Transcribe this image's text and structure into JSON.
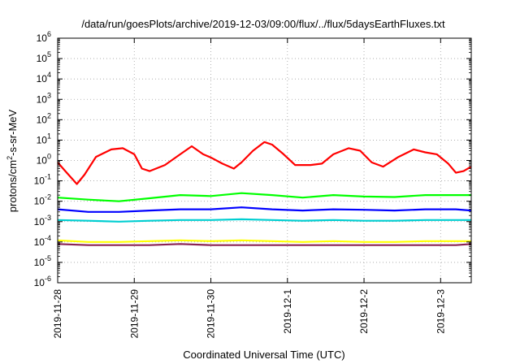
{
  "chart_data": {
    "type": "line",
    "title": "/data/run/goesPlots/archive/2019-12-03/09:00/flux/../flux/5daysEarthFluxes.txt",
    "xlabel": "Coordinated Universal Time (UTC)",
    "ylabel_pre": "protons/cm",
    "ylabel_sup": "2",
    "ylabel_post": "-s-sr-MeV",
    "yscale": "log",
    "ylim": [
      1e-06,
      1000000
    ],
    "y_ticks": [
      {
        "exp": "-6"
      },
      {
        "exp": "-5"
      },
      {
        "exp": "-4"
      },
      {
        "exp": "-3"
      },
      {
        "exp": "-2"
      },
      {
        "exp": "-1"
      },
      {
        "exp": "0"
      },
      {
        "exp": "1"
      },
      {
        "exp": "2"
      },
      {
        "exp": "3"
      },
      {
        "exp": "4"
      },
      {
        "exp": "5"
      },
      {
        "exp": "6"
      }
    ],
    "y_tick_base": "10",
    "x_ticks": [
      "2019-11-28",
      "2019-11-29",
      "2019-11-30",
      "2019-12-1",
      "2019-12-2",
      "2019-12-3"
    ],
    "xlim_days": [
      0,
      5.4
    ],
    "grid": true,
    "series": [
      {
        "color": "#ff0000",
        "points": [
          [
            0,
            0.8
          ],
          [
            0.1,
            0.3
          ],
          [
            0.25,
            0.07
          ],
          [
            0.35,
            0.2
          ],
          [
            0.5,
            1.5
          ],
          [
            0.7,
            3.5
          ],
          [
            0.85,
            4
          ],
          [
            1.0,
            2
          ],
          [
            1.1,
            0.4
          ],
          [
            1.2,
            0.3
          ],
          [
            1.4,
            0.6
          ],
          [
            1.6,
            2
          ],
          [
            1.75,
            5
          ],
          [
            1.9,
            2
          ],
          [
            2.0,
            1.4
          ],
          [
            2.15,
            0.7
          ],
          [
            2.3,
            0.4
          ],
          [
            2.4,
            0.8
          ],
          [
            2.55,
            3
          ],
          [
            2.7,
            8
          ],
          [
            2.8,
            6
          ],
          [
            2.95,
            2
          ],
          [
            3.1,
            0.6
          ],
          [
            3.3,
            0.6
          ],
          [
            3.45,
            0.7
          ],
          [
            3.6,
            2
          ],
          [
            3.8,
            4
          ],
          [
            3.95,
            3
          ],
          [
            4.1,
            0.8
          ],
          [
            4.25,
            0.5
          ],
          [
            4.45,
            1.5
          ],
          [
            4.65,
            3.5
          ],
          [
            4.8,
            2.5
          ],
          [
            4.95,
            2
          ],
          [
            5.1,
            0.7
          ],
          [
            5.2,
            0.25
          ],
          [
            5.3,
            0.3
          ],
          [
            5.4,
            0.5
          ]
        ]
      },
      {
        "color": "#00ff00",
        "points": [
          [
            0,
            0.015
          ],
          [
            0.4,
            0.012
          ],
          [
            0.8,
            0.01
          ],
          [
            1.2,
            0.014
          ],
          [
            1.6,
            0.02
          ],
          [
            2.0,
            0.018
          ],
          [
            2.4,
            0.025
          ],
          [
            2.8,
            0.02
          ],
          [
            3.2,
            0.015
          ],
          [
            3.6,
            0.02
          ],
          [
            4.0,
            0.017
          ],
          [
            4.4,
            0.016
          ],
          [
            4.8,
            0.02
          ],
          [
            5.2,
            0.02
          ],
          [
            5.4,
            0.02
          ]
        ]
      },
      {
        "color": "#0000ff",
        "points": [
          [
            0,
            0.004
          ],
          [
            0.4,
            0.003
          ],
          [
            0.8,
            0.003
          ],
          [
            1.2,
            0.0035
          ],
          [
            1.6,
            0.004
          ],
          [
            2.0,
            0.004
          ],
          [
            2.4,
            0.005
          ],
          [
            2.8,
            0.004
          ],
          [
            3.2,
            0.0035
          ],
          [
            3.6,
            0.004
          ],
          [
            4.0,
            0.0038
          ],
          [
            4.4,
            0.0035
          ],
          [
            4.8,
            0.004
          ],
          [
            5.2,
            0.004
          ],
          [
            5.4,
            0.0035
          ]
        ]
      },
      {
        "color": "#00ced1",
        "points": [
          [
            0,
            0.0012
          ],
          [
            0.4,
            0.0011
          ],
          [
            0.8,
            0.001
          ],
          [
            1.2,
            0.0011
          ],
          [
            1.6,
            0.0012
          ],
          [
            2.0,
            0.0012
          ],
          [
            2.4,
            0.0013
          ],
          [
            2.8,
            0.0012
          ],
          [
            3.2,
            0.0011
          ],
          [
            3.6,
            0.0012
          ],
          [
            4.0,
            0.0011
          ],
          [
            4.4,
            0.0011
          ],
          [
            4.8,
            0.0012
          ],
          [
            5.2,
            0.0012
          ],
          [
            5.4,
            0.0012
          ]
        ]
      },
      {
        "color": "#ffff00",
        "points": [
          [
            0,
            0.00012
          ],
          [
            0.4,
            0.0001
          ],
          [
            0.8,
            0.0001
          ],
          [
            1.2,
            0.00011
          ],
          [
            1.6,
            0.00012
          ],
          [
            2.0,
            0.00011
          ],
          [
            2.4,
            0.00012
          ],
          [
            2.8,
            0.00011
          ],
          [
            3.2,
            0.0001
          ],
          [
            3.6,
            0.00011
          ],
          [
            4.0,
            0.0001
          ],
          [
            4.4,
            0.0001
          ],
          [
            4.8,
            0.00011
          ],
          [
            5.2,
            0.00011
          ],
          [
            5.4,
            0.00011
          ]
        ]
      },
      {
        "color": "#8b2252",
        "points": [
          [
            0,
            8e-05
          ],
          [
            0.4,
            7e-05
          ],
          [
            0.8,
            7e-05
          ],
          [
            1.2,
            7e-05
          ],
          [
            1.6,
            8e-05
          ],
          [
            2.0,
            7e-05
          ],
          [
            2.4,
            7e-05
          ],
          [
            2.8,
            7e-05
          ],
          [
            3.2,
            7e-05
          ],
          [
            3.6,
            7e-05
          ],
          [
            4.0,
            7e-05
          ],
          [
            4.4,
            7e-05
          ],
          [
            4.8,
            7e-05
          ],
          [
            5.2,
            7e-05
          ],
          [
            5.4,
            8e-05
          ]
        ]
      }
    ]
  }
}
